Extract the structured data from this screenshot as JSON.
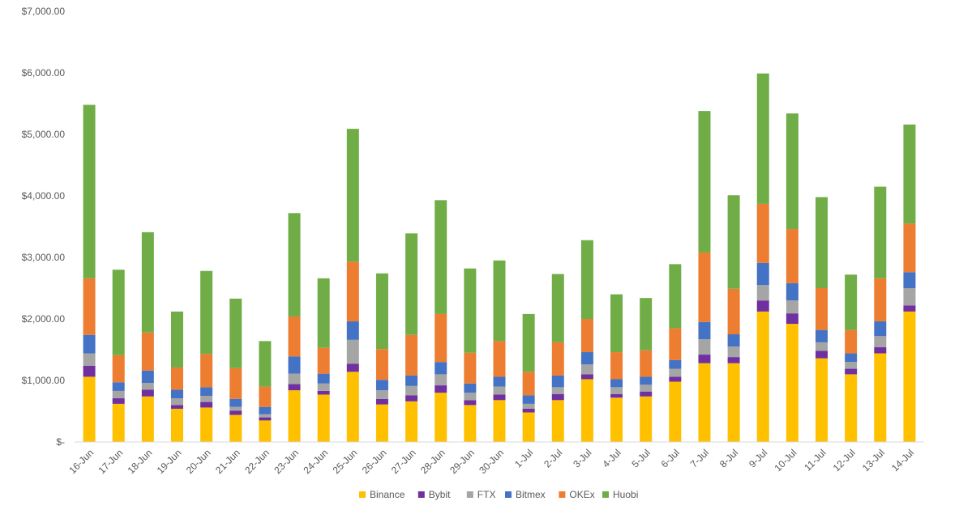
{
  "chart_data": {
    "type": "bar",
    "stacked": true,
    "title": "",
    "xlabel": "",
    "ylabel": "",
    "ylim": [
      0,
      7000
    ],
    "y_ticks": [
      0,
      1000,
      2000,
      3000,
      4000,
      5000,
      6000,
      7000
    ],
    "y_tick_labels": [
      "$-",
      "$1,000.00",
      "$2,000.00",
      "$3,000.00",
      "$4,000.00",
      "$5,000.00",
      "$6,000.00",
      "$7,000.00"
    ],
    "grid": false,
    "legend_position": "bottom",
    "categories": [
      "16-Jun",
      "17-Jun",
      "18-Jun",
      "19-Jun",
      "20-Jun",
      "21-Jun",
      "22-Jun",
      "23-Jun",
      "24-Jun",
      "25-Jun",
      "26-Jun",
      "27-Jun",
      "28-Jun",
      "29-Jun",
      "30-Jun",
      "1-Jul",
      "2-Jul",
      "3-Jul",
      "4-Jul",
      "5-Jul",
      "6-Jul",
      "7-Jul",
      "8-Jul",
      "9-Jul",
      "10-Jul",
      "11-Jul",
      "12-Jul",
      "13-Jul",
      "14-Jul"
    ],
    "series": [
      {
        "name": "Binance",
        "color": "#FFC000",
        "values": [
          1060,
          620,
          740,
          540,
          560,
          440,
          350,
          840,
          770,
          1140,
          610,
          660,
          800,
          600,
          680,
          480,
          680,
          1020,
          720,
          740,
          980,
          1280,
          1280,
          2120,
          1920,
          1360,
          1100,
          1440,
          2120
        ]
      },
      {
        "name": "Bybit",
        "color": "#7030A0",
        "values": [
          180,
          90,
          110,
          60,
          90,
          70,
          50,
          100,
          60,
          130,
          90,
          100,
          120,
          80,
          90,
          60,
          100,
          80,
          60,
          80,
          80,
          140,
          100,
          180,
          170,
          120,
          90,
          100,
          100
        ]
      },
      {
        "name": "FTX",
        "color": "#A5A5A5",
        "values": [
          200,
          120,
          110,
          110,
          100,
          60,
          50,
          170,
          120,
          390,
          140,
          150,
          180,
          120,
          130,
          80,
          110,
          160,
          110,
          110,
          130,
          250,
          170,
          250,
          210,
          140,
          110,
          180,
          280
        ]
      },
      {
        "name": "Bitmex",
        "color": "#4472C4",
        "values": [
          300,
          140,
          200,
          140,
          140,
          130,
          120,
          280,
          160,
          300,
          170,
          170,
          200,
          150,
          160,
          140,
          190,
          200,
          130,
          130,
          140,
          280,
          200,
          360,
          280,
          200,
          140,
          240,
          260
        ]
      },
      {
        "name": "OKEx",
        "color": "#ED7D31",
        "values": [
          920,
          440,
          620,
          360,
          540,
          500,
          330,
          650,
          420,
          970,
          500,
          660,
          780,
          500,
          580,
          380,
          540,
          540,
          440,
          430,
          520,
          1130,
          740,
          960,
          880,
          680,
          380,
          700,
          790
        ]
      },
      {
        "name": "Huobi",
        "color": "#70AD47",
        "values": [
          2820,
          1390,
          1630,
          910,
          1350,
          1130,
          740,
          1680,
          1130,
          2160,
          1230,
          1650,
          1850,
          1370,
          1310,
          940,
          1110,
          1280,
          940,
          850,
          1040,
          2300,
          1520,
          2120,
          1880,
          1480,
          900,
          1490,
          1610
        ]
      }
    ]
  }
}
